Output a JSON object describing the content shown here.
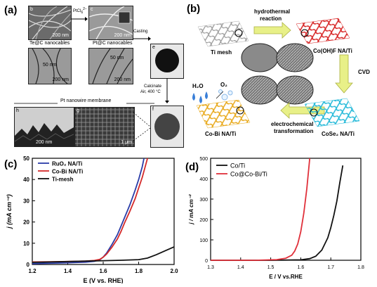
{
  "panel_a": {
    "label": "(a)",
    "labels_top": [
      "Te@C nanocables",
      "Pt@C nanocables"
    ],
    "arrow_reagent": "PtCl",
    "arrow_reagent_super": "2−",
    "arrow_reagent_sub": "6",
    "casting": "Casting",
    "calcinate_1": "Calcinate",
    "calcinate_2": "Air, 400 °C",
    "membrane": "Pt nanowire membrane",
    "scales": [
      "200 nm",
      "200 nm",
      "50 nm",
      "200 nm",
      "50 nm",
      "200 nm",
      "200 nm",
      "1 μm"
    ],
    "sublabels": [
      "b",
      "c",
      "d",
      "e",
      "f",
      "g",
      "h"
    ]
  },
  "panel_b": {
    "label": "(b)",
    "hydrothermal_1": "hydrothermal",
    "hydrothermal_2": "reaction",
    "ti_mesh": "Ti mesh",
    "cooh_1": "Co(OH)F NA/Ti",
    "cvd": "CVD",
    "h2o": "H₂O",
    "o2": "O₂",
    "cobi": "Co-Bi NA/Ti",
    "electro_1": "electrochemical",
    "electro_2": "transformation",
    "cose2": "CoSe₂ NA/Ti"
  },
  "panel_c": {
    "label": "(c)",
    "chart_data": {
      "type": "line",
      "xlabel": "E (V vs. RHE)",
      "ylabel": "j (mA cm⁻²)",
      "xlim": [
        1.2,
        2.0
      ],
      "ylim": [
        0,
        50
      ],
      "xticks": [
        "1.2",
        "1.4",
        "1.6",
        "1.8",
        "2.0"
      ],
      "yticks": [
        "0",
        "10",
        "20",
        "30",
        "40",
        "50"
      ],
      "legend_position": "top-left",
      "series": [
        {
          "name": "RuO₂ NA/Ti",
          "color": "#2b3da8",
          "x": [
            1.2,
            1.3,
            1.4,
            1.5,
            1.55,
            1.58,
            1.6,
            1.62,
            1.65,
            1.68,
            1.7,
            1.72,
            1.75,
            1.78,
            1.8,
            1.82,
            1.83
          ],
          "y": [
            0.4,
            0.6,
            0.8,
            1.1,
            1.5,
            2.2,
            3.5,
            5.5,
            9.5,
            14,
            18,
            22,
            28,
            35,
            40,
            46,
            50
          ]
        },
        {
          "name": "Co-Bi NA/Ti",
          "color": "#d42a2a",
          "x": [
            1.2,
            1.3,
            1.4,
            1.5,
            1.55,
            1.58,
            1.6,
            1.62,
            1.65,
            1.68,
            1.7,
            1.72,
            1.75,
            1.78,
            1.8,
            1.82,
            1.85
          ],
          "y": [
            1.2,
            1.3,
            1.4,
            1.6,
            1.9,
            2.4,
            3.4,
            5.0,
            8.2,
            12,
            15.5,
            19.5,
            25,
            31,
            36,
            41,
            50
          ]
        },
        {
          "name": "Ti-mesh",
          "color": "#111111",
          "x": [
            1.2,
            1.4,
            1.6,
            1.7,
            1.8,
            1.85,
            1.9,
            1.95,
            2.0
          ],
          "y": [
            1.0,
            1.4,
            1.8,
            2.0,
            2.3,
            3.0,
            4.6,
            6.5,
            8.3
          ]
        }
      ]
    }
  },
  "panel_d": {
    "label": "(d)",
    "chart_data": {
      "type": "line",
      "xlabel": "E / V vs.RHE",
      "ylabel": "j / mA cm⁻²",
      "xlim": [
        1.3,
        1.8
      ],
      "ylim": [
        0,
        500
      ],
      "xticks": [
        "1.3",
        "1.4",
        "1.5",
        "1.6",
        "1.7",
        "1.8"
      ],
      "yticks": [
        "0",
        "100",
        "200",
        "300",
        "400",
        "500"
      ],
      "legend_position": "top-left",
      "series": [
        {
          "name": "Co/Ti",
          "color": "#111111",
          "x": [
            1.3,
            1.5,
            1.6,
            1.63,
            1.65,
            1.67,
            1.69,
            1.7,
            1.71,
            1.72,
            1.73,
            1.74
          ],
          "y": [
            0,
            0,
            2,
            8,
            20,
            50,
            110,
            160,
            220,
            290,
            380,
            465
          ]
        },
        {
          "name": "Co@Co-Bi/Ti",
          "color": "#e0303a",
          "x": [
            1.3,
            1.45,
            1.52,
            1.55,
            1.57,
            1.58,
            1.59,
            1.6,
            1.61,
            1.62,
            1.63
          ],
          "y": [
            0,
            0,
            3,
            10,
            25,
            45,
            80,
            140,
            230,
            350,
            500
          ]
        }
      ]
    }
  }
}
